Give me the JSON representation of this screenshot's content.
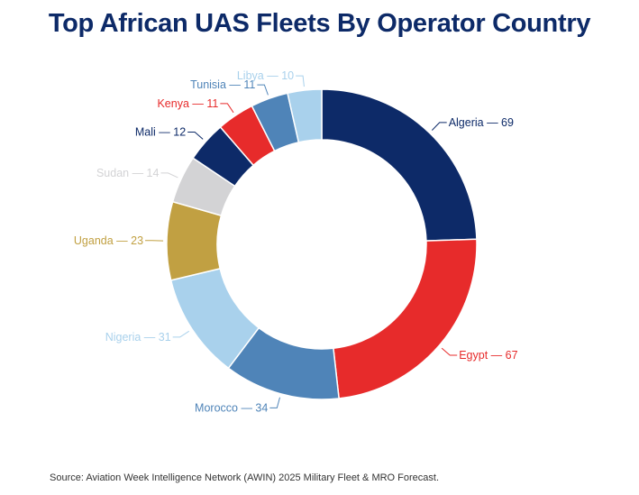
{
  "chart_data": {
    "type": "pie",
    "subtype": "donut",
    "title": "Top African UAS Fleets By Operator Country",
    "source": "Source: Aviation Week Intelligence Network (AWIN) 2025 Military Fleet & MRO Forecast.",
    "label_separator": " — ",
    "slices": [
      {
        "label": "Algeria",
        "value": 69,
        "color": "#0d2a68"
      },
      {
        "label": "Egypt",
        "value": 67,
        "color": "#e72b2b"
      },
      {
        "label": "Morocco",
        "value": 34,
        "color": "#4f84b8"
      },
      {
        "label": "Nigeria",
        "value": 31,
        "color": "#a9d1ec"
      },
      {
        "label": "Uganda",
        "value": 23,
        "color": "#c1a042"
      },
      {
        "label": "Sudan",
        "value": 14,
        "color": "#d3d3d5"
      },
      {
        "label": "Mali",
        "value": 12,
        "color": "#0d2a68"
      },
      {
        "label": "Kenya",
        "value": 11,
        "color": "#e72b2b"
      },
      {
        "label": "Tunisia",
        "value": 11,
        "color": "#4f84b8"
      },
      {
        "label": "Libya",
        "value": 10,
        "color": "#a9d1ec"
      }
    ],
    "start": "12 o'clock",
    "direction": "clockwise",
    "legend": "none (direct labels)"
  }
}
